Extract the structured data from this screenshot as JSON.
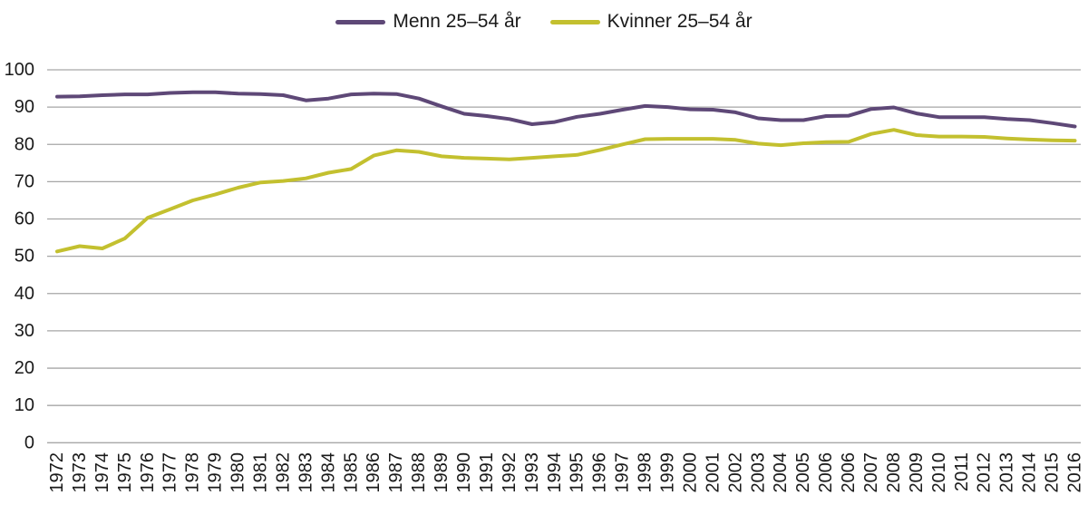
{
  "legend": {
    "items": [
      {
        "label": "Menn 25–54 år",
        "color": "#5e4877"
      },
      {
        "label": "Kvinner 25–54 år",
        "color": "#c3c02f"
      }
    ]
  },
  "chart_data": {
    "type": "line",
    "title": "",
    "xlabel": "",
    "ylabel": "",
    "x": [
      "1972",
      "1973",
      "1974",
      "1975",
      "1976",
      "1977",
      "1978",
      "1979",
      "1980",
      "1981",
      "1982",
      "1983",
      "1984",
      "1985",
      "1986",
      "1987",
      "1988",
      "1989",
      "1990",
      "1991",
      "1992",
      "1993",
      "1994",
      "1995",
      "1996",
      "1997",
      "1998",
      "1999",
      "2000",
      "2001",
      "2002",
      "2003",
      "2004",
      "2005",
      "2006",
      "2006",
      "2007",
      "2008",
      "2009",
      "2010",
      "2011",
      "2012",
      "2013",
      "2014",
      "2015",
      "2016"
    ],
    "series": [
      {
        "name": "Menn 25–54 år",
        "color": "#5e4877",
        "values": [
          92.8,
          92.9,
          93.2,
          93.4,
          93.4,
          93.8,
          94.0,
          94.0,
          93.6,
          93.5,
          93.2,
          91.8,
          92.3,
          93.4,
          93.6,
          93.5,
          92.3,
          90.2,
          88.2,
          87.6,
          86.8,
          85.4,
          86.0,
          87.4,
          88.2,
          89.3,
          90.3,
          90.0,
          89.4,
          89.3,
          88.6,
          87.0,
          86.5,
          86.5,
          87.6,
          87.7,
          89.5,
          89.9,
          88.3,
          87.3,
          87.3,
          87.3,
          86.8,
          86.5,
          85.7,
          84.8
        ]
      },
      {
        "name": "Kvinner 25–54 år",
        "color": "#c3c02f",
        "values": [
          51.3,
          52.7,
          52.1,
          54.8,
          60.3,
          62.6,
          65.0,
          66.6,
          68.4,
          69.8,
          70.2,
          70.9,
          72.4,
          73.4,
          77.0,
          78.4,
          78.0,
          76.8,
          76.4,
          76.2,
          76.0,
          76.4,
          76.8,
          77.2,
          78.5,
          80.0,
          81.4,
          81.5,
          81.5,
          81.5,
          81.2,
          80.2,
          79.8,
          80.3,
          80.6,
          80.7,
          82.8,
          83.9,
          82.5,
          82.1,
          82.1,
          82.0,
          81.6,
          81.3,
          81.1,
          81.0
        ]
      }
    ],
    "ylim": [
      0,
      100
    ],
    "yticks": [
      0,
      10,
      20,
      30,
      40,
      50,
      60,
      70,
      80,
      90,
      100
    ],
    "grid": "horizontal",
    "legend_position": "top-center",
    "x_tick_rotation": -90
  },
  "style": {
    "grid_color": "#a6a6a6",
    "text_color": "#1a1a1a",
    "background": "#ffffff",
    "line_width": 4,
    "y_tick_font_px": 20,
    "x_tick_font_px": 20
  }
}
